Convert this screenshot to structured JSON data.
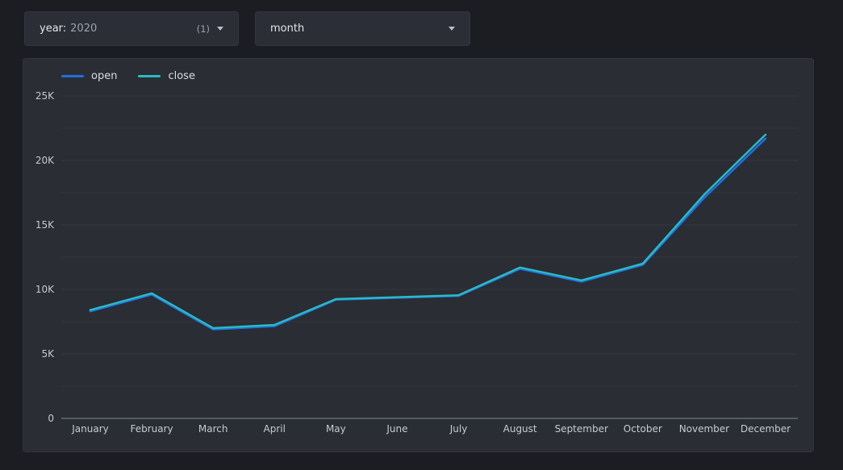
{
  "filters": {
    "year": {
      "label": "year:",
      "value": "2020",
      "badge": "(1)"
    },
    "month": {
      "label": "month"
    }
  },
  "chart_data": {
    "type": "line",
    "title": "",
    "xlabel": "",
    "ylabel": "",
    "categories": [
      "January",
      "February",
      "March",
      "April",
      "May",
      "June",
      "July",
      "August",
      "September",
      "October",
      "November",
      "December"
    ],
    "series": [
      {
        "name": "open",
        "color": "#1f6fe0",
        "values": [
          8300,
          9600,
          6900,
          7150,
          9200,
          9350,
          9500,
          11600,
          10600,
          11900,
          17100,
          21700
        ]
      },
      {
        "name": "close",
        "color": "#2bbac2",
        "values": [
          8400,
          9700,
          7000,
          7250,
          9250,
          9400,
          9550,
          11700,
          10700,
          12000,
          17350,
          22000
        ]
      }
    ],
    "ylim": [
      0,
      25000
    ],
    "ytick_values": [
      0,
      5000,
      10000,
      15000,
      20000,
      25000
    ],
    "ytick_labels": [
      "0",
      "5K",
      "10K",
      "15K",
      "20K",
      "25K"
    ],
    "ygrid_step": 2500,
    "grid": true,
    "legend_position": "top-left"
  },
  "colors": {
    "page_bg": "#1b1d22",
    "panel_bg": "#2a2d34",
    "grid_line": "#34373e",
    "axis_line": "#656970",
    "tick_text": "#c7cad0",
    "open_line": "#1f6fe0",
    "close_line": "#2bbac2"
  }
}
